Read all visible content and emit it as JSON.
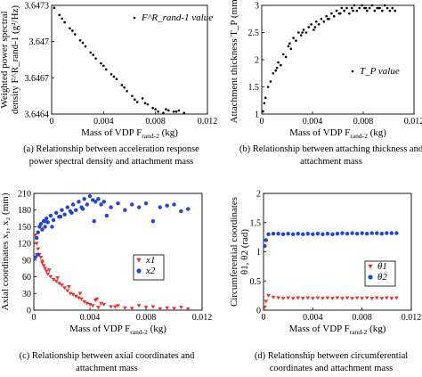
{
  "chart_data": [
    {
      "type": "scatter",
      "xlabel": "Mass of VDP F",
      "xlabel_sub": "rand-2",
      "xlabel_unit": " (kg)",
      "ylabel_lines": [
        "Weighted  power  spectral",
        "density F^R_rand-1 (g²/Hz)"
      ],
      "xlim": [
        0,
        0.012
      ],
      "ylim": [
        3.6464,
        3.6473
      ],
      "xticks": [
        "0",
        "0.004",
        "0.008",
        "0.012"
      ],
      "yticks": [
        "3.6473",
        "3.647",
        "3.6467",
        "3.6464"
      ],
      "series": [
        {
          "name": "F^R_rand-1 value",
          "marker": "dot",
          "color": "#000000",
          "x": [
            0.0002,
            0.0006,
            0.001,
            0.0014,
            0.0018,
            0.0022,
            0.0026,
            0.003,
            0.0034,
            0.0038,
            0.0042,
            0.0046,
            0.005,
            0.0054,
            0.0058,
            0.0062,
            0.0066,
            0.007,
            0.0074,
            0.0078,
            0.0082,
            0.0086,
            0.009,
            0.0094,
            0.0098,
            0.0102,
            0.0008,
            0.0016,
            0.0024,
            0.0032,
            0.004,
            0.0048,
            0.0056,
            0.0064,
            0.0072,
            0.008,
            0.0088,
            0.0096
          ],
          "y": [
            3.64728,
            3.64722,
            3.64716,
            3.64711,
            3.64706,
            3.64701,
            3.64696,
            3.64691,
            3.64686,
            3.64682,
            3.64677,
            3.64673,
            3.64669,
            3.64664,
            3.64659,
            3.64655,
            3.6465,
            3.64653,
            3.64648,
            3.64645,
            3.64642,
            3.64641,
            3.64643,
            3.64642,
            3.64643,
            3.64641,
            3.64719,
            3.64709,
            3.64699,
            3.64689,
            3.6468,
            3.64671,
            3.64662,
            3.64652,
            3.64649,
            3.64644,
            3.64644,
            3.64642
          ]
        }
      ],
      "caption": "(a) Relationship between acceleration response power spectral density and attachment mass"
    },
    {
      "type": "scatter",
      "xlabel": "Mass of VDP F",
      "xlabel_sub": "rand-2",
      "xlabel_unit": " (kg)",
      "ylabel_lines": [
        "Attachment thickness T_P (mm)"
      ],
      "xlim": [
        0,
        0.012
      ],
      "ylim": [
        1,
        3
      ],
      "xticks": [
        "0",
        "0.004",
        "0.008",
        "0.012"
      ],
      "yticks": [
        "3",
        "2.5",
        "2",
        "1.5",
        "1"
      ],
      "series": [
        {
          "name": "T_P value",
          "marker": "dot",
          "color": "#000000",
          "x": [
            0.0001,
            0.0003,
            0.0005,
            0.0007,
            0.0009,
            0.0011,
            0.0013,
            0.0015,
            0.0017,
            0.0019,
            0.0021,
            0.0023,
            0.0025,
            0.0027,
            0.0029,
            0.0031,
            0.0033,
            0.0035,
            0.0037,
            0.0039,
            0.0041,
            0.0043,
            0.0045,
            0.0047,
            0.0049,
            0.0051,
            0.0053,
            0.0055,
            0.0057,
            0.0059,
            0.0061,
            0.0063,
            0.0065,
            0.0067,
            0.0069,
            0.0071,
            0.0073,
            0.0075,
            0.0077,
            0.0079,
            0.0081,
            0.0083,
            0.0085,
            0.0087,
            0.0089,
            0.0091,
            0.0093,
            0.0095,
            0.0097,
            0.0099,
            0.0101,
            0.0103,
            0.0105,
            0.0002,
            0.0012,
            0.0022,
            0.0032,
            0.0042,
            0.0052,
            0.0062,
            0.0072,
            0.0082,
            0.0092
          ],
          "y": [
            1.05,
            1.3,
            1.5,
            1.6,
            1.75,
            1.8,
            1.95,
            1.9,
            2.1,
            2.05,
            2.25,
            2.2,
            2.4,
            2.35,
            2.5,
            2.45,
            2.55,
            2.5,
            2.6,
            2.65,
            2.55,
            2.7,
            2.65,
            2.75,
            2.7,
            2.8,
            2.75,
            2.85,
            2.8,
            2.9,
            2.85,
            2.95,
            2.9,
            2.95,
            2.85,
            2.95,
            3.0,
            2.9,
            2.95,
            3.0,
            2.95,
            2.9,
            2.95,
            3.0,
            2.9,
            2.95,
            2.95,
            2.9,
            3.0,
            2.95,
            2.9,
            2.95,
            2.9,
            1.2,
            1.85,
            2.3,
            2.5,
            2.6,
            2.75,
            2.85,
            2.9,
            2.95,
            2.95
          ]
        }
      ],
      "caption": "(b) Relationship between attaching thickness and attachment mass"
    },
    {
      "type": "scatter",
      "xlabel": "Mass of VDP F",
      "xlabel_sub": "rand-2",
      "xlabel_unit": " (kg)",
      "ylabel_lines": [
        "Axial coordinates x₁, x₂ (mm)"
      ],
      "xlim": [
        0,
        0.012
      ],
      "ylim": [
        0,
        210
      ],
      "xticks": [
        "0",
        "0.004",
        "0.008",
        "0.012"
      ],
      "yticks": [
        "210",
        "180",
        "150",
        "120",
        "90",
        "60",
        "30",
        "0"
      ],
      "series": [
        {
          "name": "x1",
          "marker": "triangle-down",
          "color": "#e8332a",
          "x": [
            0.0001,
            0.0002,
            0.0003,
            0.0004,
            0.0005,
            0.0006,
            0.0007,
            0.0008,
            0.0009,
            0.001,
            0.0012,
            0.0014,
            0.0016,
            0.0018,
            0.002,
            0.0022,
            0.0024,
            0.0026,
            0.0028,
            0.003,
            0.0032,
            0.0034,
            0.0036,
            0.0038,
            0.004,
            0.0042,
            0.0044,
            0.0046,
            0.0048,
            0.005,
            0.0055,
            0.006,
            0.0065,
            0.007,
            0.0075,
            0.008,
            0.0085,
            0.009,
            0.0095,
            0.01,
            0.0105,
            0.011,
            0.0002,
            0.0006,
            0.0011,
            0.0017,
            0.0025,
            0.0033,
            0.0045,
            0.0058
          ],
          "y": [
            135,
            120,
            110,
            100,
            95,
            88,
            80,
            75,
            70,
            65,
            60,
            55,
            52,
            48,
            45,
            40,
            35,
            30,
            28,
            25,
            22,
            20,
            15,
            12,
            10,
            8,
            18,
            5,
            12,
            10,
            6,
            8,
            4,
            3,
            8,
            5,
            6,
            2,
            4,
            3,
            5,
            2,
            100,
            85,
            72,
            58,
            42,
            30,
            20,
            6
          ]
        },
        {
          "name": "x2",
          "marker": "circle",
          "color": "#2245d8",
          "x": [
            0.0001,
            0.0002,
            0.0003,
            0.0004,
            0.0005,
            0.0006,
            0.0007,
            0.0008,
            0.0009,
            0.001,
            0.0012,
            0.0014,
            0.0016,
            0.0018,
            0.002,
            0.0022,
            0.0024,
            0.0026,
            0.0028,
            0.003,
            0.0032,
            0.0034,
            0.0036,
            0.0038,
            0.004,
            0.0042,
            0.0044,
            0.0046,
            0.0048,
            0.005,
            0.0055,
            0.006,
            0.0065,
            0.007,
            0.0075,
            0.008,
            0.0085,
            0.009,
            0.0095,
            0.01,
            0.0105,
            0.011,
            0.0003,
            0.0008,
            0.0013,
            0.0019,
            0.0027,
            0.0035,
            0.0043,
            0.0052
          ],
          "y": [
            95,
            130,
            140,
            150,
            155,
            145,
            160,
            150,
            165,
            158,
            170,
            162,
            175,
            168,
            180,
            172,
            185,
            178,
            190,
            180,
            195,
            185,
            200,
            190,
            205,
            198,
            195,
            200,
            190,
            195,
            185,
            192,
            180,
            190,
            185,
            192,
            160,
            185,
            188,
            190,
            178,
            182,
            100,
            160,
            150,
            168,
            175,
            182,
            160,
            170
          ]
        }
      ],
      "caption": "(c) Relationship between axial coordinates and attachment mass"
    },
    {
      "type": "scatter",
      "xlabel": "Mass of VDP F",
      "xlabel_sub": "rand-2",
      "xlabel_unit": " (kg)",
      "ylabel_lines": [
        "Circumferential coordinates",
        "θ1, θ2 (rad)"
      ],
      "xlim": [
        0,
        0.012
      ],
      "ylim": [
        0,
        2
      ],
      "xticks": [
        "0",
        "0.004",
        "0.008",
        "0.012"
      ],
      "yticks": [
        "2",
        "1.5",
        "1",
        "0.5",
        "0"
      ],
      "series": [
        {
          "name": "θ1",
          "marker": "triangle-down",
          "color": "#e8332a",
          "x": [
            0.0001,
            0.0002,
            0.0004,
            0.0008,
            0.0012,
            0.0016,
            0.002,
            0.0024,
            0.0028,
            0.0032,
            0.0036,
            0.004,
            0.0044,
            0.0048,
            0.0052,
            0.0056,
            0.006,
            0.0064,
            0.0068,
            0.0072,
            0.0076,
            0.008,
            0.0084,
            0.0088,
            0.0092,
            0.0096,
            0.01,
            0.0104,
            0.0108
          ],
          "y": [
            0.05,
            0.15,
            0.25,
            0.22,
            0.21,
            0.2,
            0.21,
            0.2,
            0.21,
            0.2,
            0.21,
            0.2,
            0.21,
            0.2,
            0.21,
            0.2,
            0.21,
            0.2,
            0.21,
            0.2,
            0.21,
            0.2,
            0.21,
            0.2,
            0.21,
            0.2,
            0.21,
            0.2,
            0.21
          ]
        },
        {
          "name": "θ2",
          "marker": "circle",
          "color": "#2245d8",
          "x": [
            0.0001,
            0.0002,
            0.0004,
            0.0008,
            0.0012,
            0.0016,
            0.002,
            0.0024,
            0.0028,
            0.0032,
            0.0036,
            0.004,
            0.0044,
            0.0048,
            0.0052,
            0.0056,
            0.006,
            0.0064,
            0.0068,
            0.0072,
            0.0076,
            0.008,
            0.0084,
            0.0088,
            0.0092,
            0.0096,
            0.01,
            0.0104,
            0.0108
          ],
          "y": [
            1.1,
            1.2,
            1.3,
            1.31,
            1.31,
            1.3,
            1.31,
            1.3,
            1.31,
            1.3,
            1.31,
            1.3,
            1.31,
            1.3,
            1.31,
            1.3,
            1.31,
            1.32,
            1.31,
            1.32,
            1.31,
            1.32,
            1.31,
            1.32,
            1.32,
            1.31,
            1.32,
            1.32,
            1.32
          ]
        }
      ],
      "caption": "(d) Relationship between circumferential coordinates and attachment mass"
    }
  ]
}
